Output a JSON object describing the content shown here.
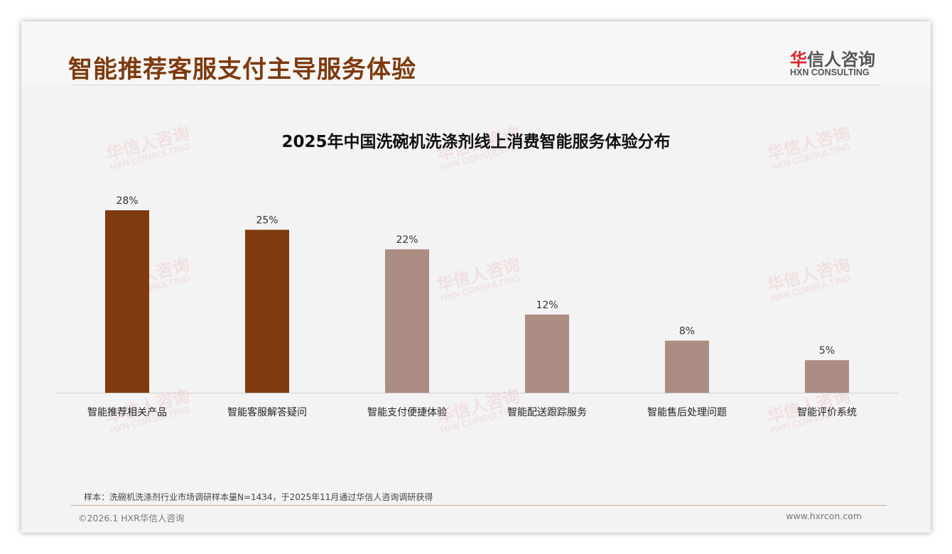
{
  "header": {
    "title": "智能推荐客服支付主导服务体验",
    "logo_cn_red": "华",
    "logo_cn_rest": "信人咨询",
    "logo_en": "HXN CONSULTING"
  },
  "watermark": {
    "cn": "华信人咨询",
    "en": "HXN CONSULTING"
  },
  "chart_data": {
    "type": "bar",
    "title": "2025年中国洗碗机洗涤剂线上消费智能服务体验分布",
    "categories": [
      "智能推荐相关产品",
      "智能客服解答疑问",
      "智能支付便捷体验",
      "智能配送跟踪服务",
      "智能售后处理问题",
      "智能评价系统"
    ],
    "values": [
      28,
      25,
      22,
      12,
      8,
      5
    ],
    "value_labels": [
      "28%",
      "25%",
      "22%",
      "12%",
      "8%",
      "5%"
    ],
    "unit": "%",
    "colors": [
      "#7f3b0d",
      "#7f3b0d",
      "#ac8d83",
      "#ac8d83",
      "#ac8d83",
      "#ac8d83"
    ],
    "ylim": [
      0,
      30
    ],
    "xlabel": "",
    "ylabel": "",
    "grid": false
  },
  "footer": {
    "note": "样本：洗碗机洗涤剂行业市场调研样本量N=1434，于2025年11月通过华信人咨询调研获得",
    "copyright": "©2026.1 HXR华信人咨询",
    "url": "www.hxrcon.com"
  }
}
